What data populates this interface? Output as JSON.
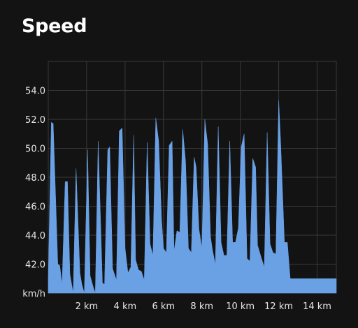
{
  "header": {
    "title": "Speed"
  },
  "colors": {
    "background": "#131313",
    "fill": "#6aa0e4",
    "grid": "#3a3a3a"
  },
  "chart_data": {
    "type": "area",
    "title": "Speed",
    "xlabel": "",
    "ylabel": "",
    "y_unit_label": "km/h",
    "x_unit": "km",
    "xlim": [
      0,
      15
    ],
    "ylim": [
      40,
      56
    ],
    "grid": true,
    "legend": "none",
    "y_ticks": [
      42,
      44,
      46,
      48,
      50,
      52,
      54
    ],
    "y_tick_labels": [
      "42.0",
      "44.0",
      "46.0",
      "48.0",
      "50.0",
      "52.0",
      "54.0"
    ],
    "x_ticks": [
      2,
      4,
      6,
      8,
      10,
      12,
      14
    ],
    "x_tick_labels": [
      "2 km",
      "4 km",
      "6 km",
      "8 km",
      "10 km",
      "12 km",
      "14 km"
    ],
    "series": [
      {
        "x": [
          0,
          0.16,
          0.26,
          0.5,
          0.6,
          0.72,
          0.88,
          1.0,
          1.13,
          1.3,
          1.45,
          1.65,
          1.75,
          1.88,
          2.05,
          2.18,
          2.35,
          2.45,
          2.6,
          2.82,
          2.93,
          3.1,
          3.2,
          3.35,
          3.55,
          3.7,
          3.85,
          4.0,
          4.15,
          4.3,
          4.45,
          4.55,
          4.7,
          4.85,
          5.0,
          5.15,
          5.3,
          5.45,
          5.6,
          5.75,
          5.9,
          6.0,
          6.15,
          6.3,
          6.45,
          6.55,
          6.7,
          6.85,
          7.0,
          7.15,
          7.3,
          7.45,
          7.6,
          7.7,
          7.85,
          8.0,
          8.15,
          8.3,
          8.45,
          8.55,
          8.7,
          8.85,
          9.0,
          9.15,
          9.3,
          9.45,
          9.6,
          9.75,
          9.9,
          10.05,
          10.2,
          10.35,
          10.5,
          10.65,
          10.8,
          10.9,
          11.1,
          11.25,
          11.4,
          11.55,
          11.7,
          11.85,
          12.0,
          12.1,
          12.3,
          12.45,
          12.6,
          12.75,
          12.9,
          13.05,
          13.2,
          13.35,
          13.5,
          13.65,
          13.8,
          13.95,
          14.1,
          14.25,
          14.4,
          14.5,
          14.7,
          14.85,
          15.0
        ],
        "y": [
          41.0,
          51.8,
          51.7,
          42.0,
          41.9,
          40.6,
          47.7,
          47.7,
          41.3,
          40.0,
          48.6,
          41.4,
          40.6,
          40.0,
          49.9,
          41.2,
          40.4,
          40.0,
          50.5,
          40.7,
          40.6,
          49.9,
          50.1,
          41.7,
          40.9,
          51.2,
          51.4,
          43.1,
          41.4,
          41.8,
          50.9,
          42.3,
          41.6,
          41.5,
          40.9,
          50.4,
          43.4,
          42.6,
          52.1,
          50.5,
          45.1,
          43.1,
          42.8,
          50.2,
          50.5,
          42.9,
          44.3,
          44.2,
          51.3,
          49.1,
          43.1,
          42.8,
          49.4,
          48.7,
          44.4,
          43.1,
          52.0,
          50.3,
          43.9,
          43.0,
          42.0,
          51.5,
          43.5,
          42.6,
          42.6,
          50.5,
          43.5,
          43.5,
          44.5,
          50.1,
          51.0,
          42.4,
          42.2,
          49.3,
          48.7,
          43.3,
          42.4,
          41.8,
          51.1,
          43.4,
          42.8,
          42.7,
          53.3,
          50.5,
          43.5,
          43.5,
          41.0,
          41.0,
          41.0,
          41.0,
          41.0,
          41.0,
          41.0,
          41.0,
          41.0,
          41.0,
          41.0,
          41.0,
          41.0,
          41.0,
          41.0,
          41.0,
          41.0
        ]
      }
    ]
  }
}
